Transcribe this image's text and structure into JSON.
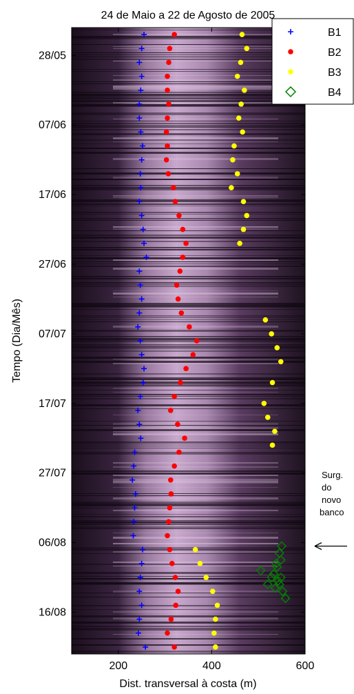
{
  "chart_data": {
    "type": "scatter",
    "title": "24 de Maio a 22 de Agosto de 2005",
    "xlabel": "Dist. transversal à costa (m)",
    "ylabel": "Tempo (Dia/Mês)",
    "xlim": [
      100,
      600
    ],
    "x_ticks": [
      "200",
      "400",
      "600"
    ],
    "x_tick_values": [
      200,
      400,
      600
    ],
    "ylim_days": [
      24,
      114
    ],
    "y_axis_reversed": true,
    "y_ticks": [
      "28/05",
      "07/06",
      "17/06",
      "27/06",
      "07/07",
      "17/07",
      "27/07",
      "06/08",
      "16/08"
    ],
    "y_tick_days": [
      28,
      38,
      48,
      58,
      68,
      78,
      88,
      98,
      108
    ],
    "background": "timestack image (pink/black intensity)",
    "legend_position": "top-right",
    "annotation": {
      "lines": [
        "Surg.",
        "do",
        "novo",
        "banco"
      ],
      "arrow_target_day": 98.5
    },
    "series": [
      {
        "name": "B1",
        "marker": "plus",
        "color": "#0000ff",
        "y_days": [
          25,
          27,
          29,
          31,
          33,
          35,
          37,
          39,
          41,
          43,
          45,
          47,
          49,
          51,
          53,
          55,
          57,
          59,
          61,
          63,
          65,
          67,
          69,
          71,
          73,
          75,
          77,
          79,
          81,
          83,
          85,
          87,
          89,
          91,
          93,
          95,
          97,
          99,
          101,
          103,
          105,
          107,
          109,
          111,
          113
        ],
        "x": [
          255,
          250,
          245,
          250,
          248,
          245,
          245,
          248,
          252,
          250,
          247,
          248,
          245,
          250,
          253,
          255,
          260,
          245,
          247,
          250,
          245,
          242,
          247,
          250,
          255,
          253,
          247,
          242,
          245,
          248,
          235,
          233,
          230,
          237,
          235,
          233,
          232,
          252,
          250,
          247,
          245,
          250,
          245,
          243,
          258
        ]
      },
      {
        "name": "B2",
        "marker": "dot",
        "color": "#ff0000",
        "y_days": [
          25,
          27,
          29,
          31,
          33,
          35,
          37,
          39,
          41,
          43,
          45,
          47,
          49,
          51,
          53,
          55,
          57,
          59,
          61,
          63,
          65,
          67,
          69,
          71,
          73,
          75,
          77,
          79,
          81,
          83,
          85,
          87,
          89,
          91,
          93,
          95,
          97,
          99,
          101,
          103,
          105,
          107,
          109,
          111,
          113
        ],
        "x": [
          320,
          310,
          308,
          305,
          305,
          308,
          305,
          303,
          305,
          303,
          307,
          318,
          322,
          330,
          338,
          345,
          338,
          332,
          325,
          328,
          335,
          352,
          368,
          360,
          345,
          333,
          320,
          312,
          327,
          342,
          330,
          320,
          312,
          313,
          310,
          308,
          305,
          310,
          315,
          322,
          328,
          323,
          313,
          305,
          320
        ]
      },
      {
        "name": "B3",
        "marker": "dot",
        "color": "#ffff00",
        "y_days": [
          25,
          27,
          29,
          31,
          33,
          35,
          37,
          39,
          41,
          43,
          45,
          47,
          49,
          51,
          53,
          55,
          66,
          68,
          70,
          72,
          75,
          78,
          80,
          82,
          84,
          99,
          101,
          103,
          105,
          107,
          109,
          111,
          113
        ],
        "x": [
          465,
          475,
          462,
          455,
          470,
          463,
          458,
          466,
          448,
          445,
          455,
          442,
          468,
          475,
          468,
          460,
          515,
          528,
          540,
          548,
          530,
          512,
          520,
          535,
          530,
          365,
          375,
          388,
          402,
          412,
          408,
          405,
          408
        ]
      },
      {
        "name": "B4",
        "marker": "diamond",
        "color": "#008000",
        "y_days": [
          98.5,
          99.5,
          100.5,
          101.5,
          102.5,
          103.5,
          104.5,
          102,
          103,
          104,
          105,
          106,
          104,
          101,
          103
        ],
        "x": [
          550,
          545,
          548,
          540,
          533,
          542,
          536,
          505,
          528,
          545,
          552,
          558,
          520,
          538,
          548
        ]
      }
    ]
  }
}
